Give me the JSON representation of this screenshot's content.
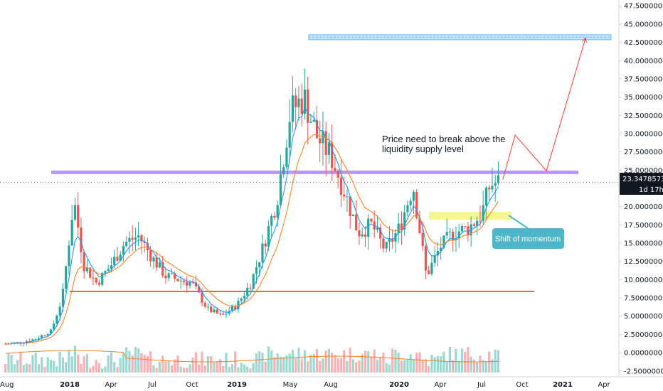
{
  "chart_data": {
    "type": "candlestick",
    "y_axis": {
      "ticks": [
        "47.5000000",
        "45.0000000",
        "42.5000000",
        "40.0000000",
        "37.5000000",
        "35.0000000",
        "32.5000000",
        "30.0000000",
        "27.5000000",
        "25.0000000",
        "22.5000000",
        "20.0000000",
        "17.5000000",
        "15.0000000",
        "12.5000000",
        "10.0000000",
        "7.5000000",
        "5.0000000",
        "2.5000000",
        "0.0000000",
        "-2.5000000"
      ],
      "tick_values": [
        47.5,
        45,
        42.5,
        40,
        37.5,
        35,
        32.5,
        30,
        27.5,
        25,
        22.5,
        20,
        17.5,
        15,
        12.5,
        10,
        7.5,
        5,
        2.5,
        0,
        -2.5
      ],
      "range": [
        -3.3,
        48.3
      ]
    },
    "x_axis": {
      "labels": [
        "Aug",
        "2018",
        "Apr",
        "Jul",
        "Oct",
        "2019",
        "May",
        "Aug",
        "2020",
        "Apr",
        "Jul",
        "Oct",
        "2021",
        "Apr"
      ],
      "label_dates": [
        "2017-08-01",
        "2018-01-01",
        "2018-04-01",
        "2018-07-01",
        "2018-10-01",
        "2019-01-01",
        "2019-05-01",
        "2019-08-01",
        "2020-01-01",
        "2020-04-01",
        "2020-07-01",
        "2020-10-01",
        "2021-01-01",
        "2021-04-01"
      ]
    },
    "current_price": "23.3478573",
    "countdown": "1d 17h",
    "price_series": {
      "dates": [
        "2017-08-07",
        "2017-09-10",
        "2017-10-15",
        "2017-11-20",
        "2017-12-15",
        "2018-01-10",
        "2018-02-01",
        "2018-03-01",
        "2018-04-01",
        "2018-05-01",
        "2018-06-01",
        "2018-07-01",
        "2018-08-01",
        "2018-09-01",
        "2018-10-01",
        "2018-11-01",
        "2018-12-01",
        "2019-01-01",
        "2019-02-01",
        "2019-03-01",
        "2019-04-01",
        "2019-05-01",
        "2019-06-01",
        "2019-07-01",
        "2019-08-01",
        "2019-09-01",
        "2019-10-01",
        "2019-11-01",
        "2019-12-01",
        "2020-01-01",
        "2020-02-01",
        "2020-03-01",
        "2020-04-01",
        "2020-05-01",
        "2020-06-01",
        "2020-07-01",
        "2020-07-20",
        "2020-08-10"
      ],
      "close": [
        1.2,
        1.4,
        1.9,
        3.0,
        7.5,
        21.0,
        12.0,
        9.5,
        12.0,
        15.0,
        16.0,
        13.0,
        10.5,
        10.0,
        9.5,
        6.0,
        5.0,
        6.5,
        9.5,
        14.5,
        21.0,
        33.0,
        35.0,
        29.5,
        27.0,
        22.0,
        16.5,
        17.5,
        14.0,
        17.0,
        23.0,
        10.5,
        14.5,
        16.5,
        17.0,
        19.0,
        23.0,
        23.35
      ]
    },
    "annotations": {
      "liquidity_text_line1": "Price need to break above the",
      "liquidity_text_line2": "liquidity  supply level",
      "momentum_label": "Shift of momentum",
      "levels": {
        "resistance": 24.7,
        "support": 8.4,
        "target": 43.2,
        "momentum_zone": [
          18.2,
          19.3
        ]
      },
      "projection_path": [
        [
          "2020-08-18",
          23.7
        ],
        [
          "2020-09-15",
          29.8
        ],
        [
          "2020-11-25",
          24.9
        ],
        [
          "2021-02-20",
          43.1
        ]
      ]
    },
    "colors": {
      "up": "#26a69a",
      "down": "#ef5350",
      "ema_fast": "#2196f3",
      "ema_slow": "#ff7f27",
      "resistance": "#b388ff",
      "support": "#e53935",
      "target_box": "#64b5f6",
      "momentum_zone": "#f5f57a",
      "callout_bg": "#4db6c8",
      "price_label_bg": "#131722",
      "projection": "#ff3b30"
    }
  }
}
